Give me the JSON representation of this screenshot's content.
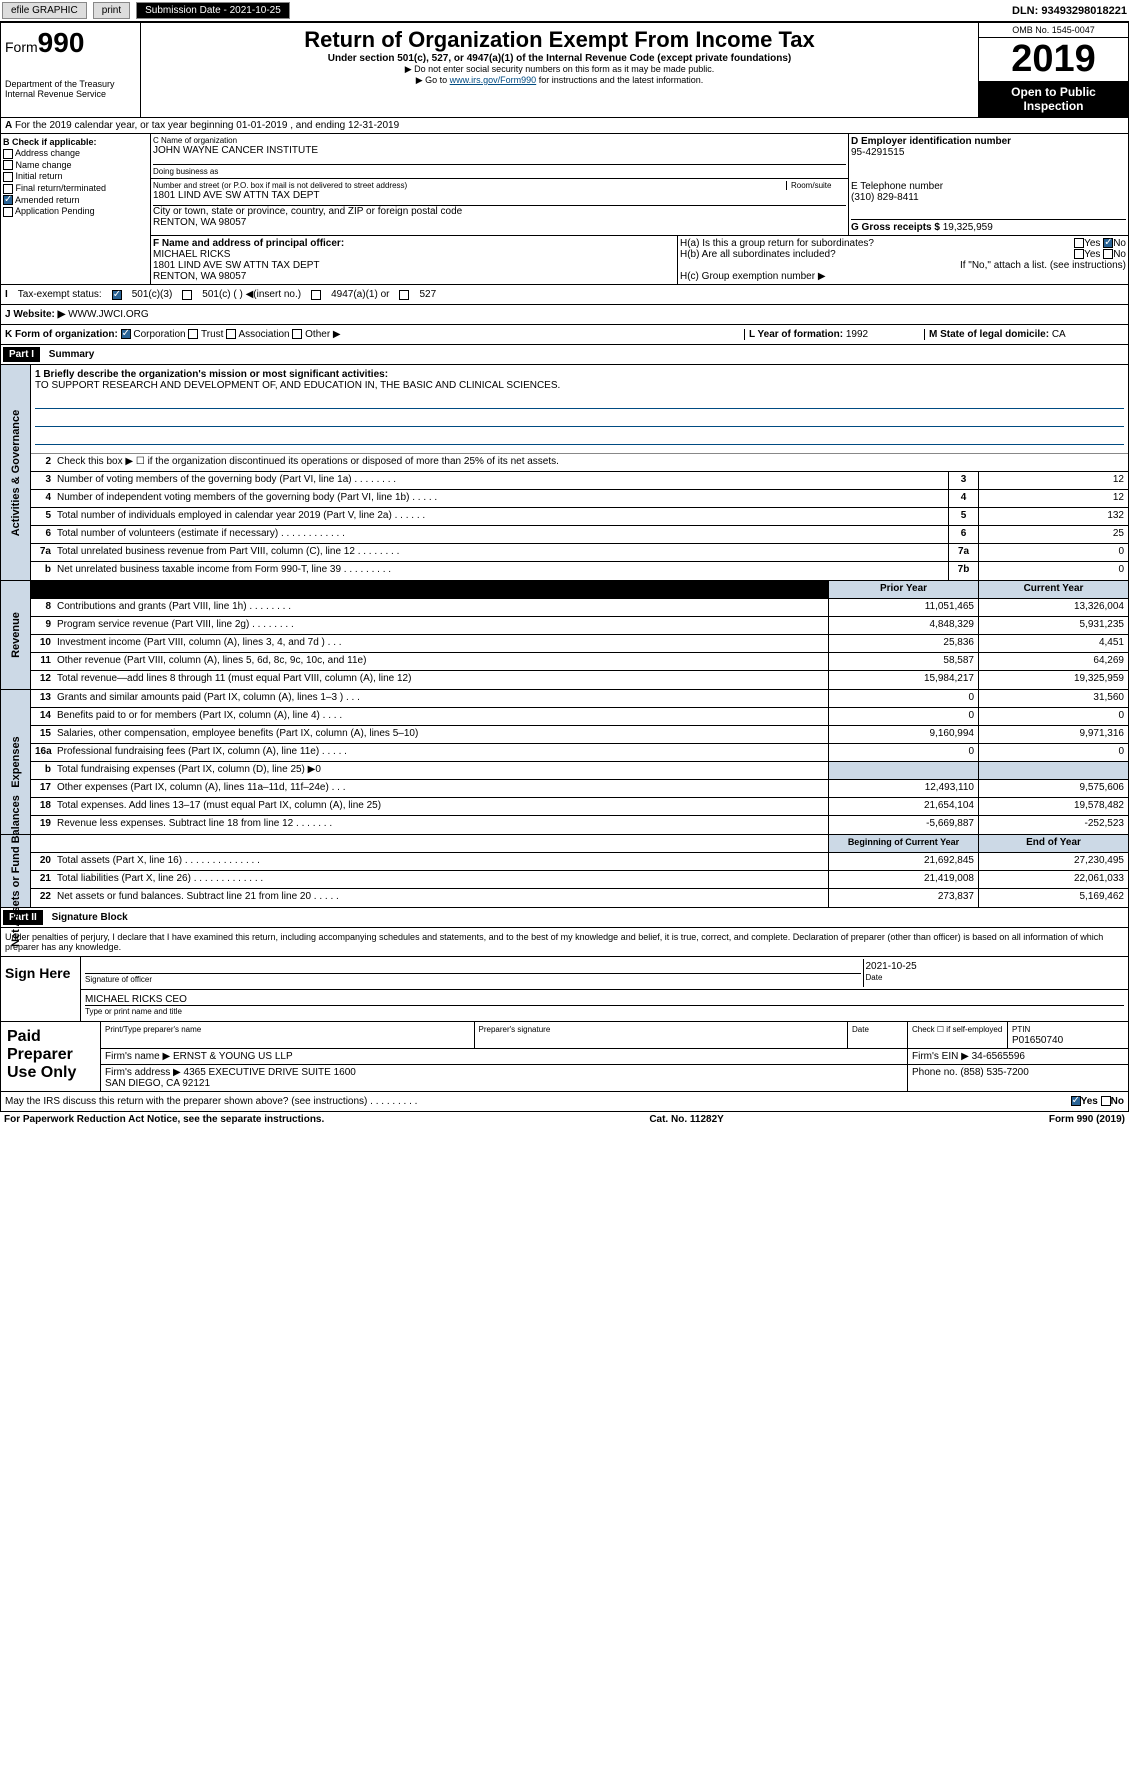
{
  "topbar": {
    "efile": "efile GRAPHIC",
    "print": "print",
    "subdate_label": "Submission Date - 2021-10-25",
    "dln": "DLN: 93493298018221"
  },
  "header": {
    "form_label": "Form",
    "form_num": "990",
    "title": "Return of Organization Exempt From Income Tax",
    "subtitle": "Under section 501(c), 527, or 4947(a)(1) of the Internal Revenue Code (except private foundations)",
    "note1": "▶ Do not enter social security numbers on this form as it may be made public.",
    "note2_pre": "▶ Go to ",
    "note2_link": "www.irs.gov/Form990",
    "note2_post": " for instructions and the latest information.",
    "dept": "Department of the Treasury\nInternal Revenue Service",
    "omb": "OMB No. 1545-0047",
    "year": "2019",
    "inspect": "Open to Public Inspection"
  },
  "row_a": "For the 2019 calendar year, or tax year beginning 01-01-2019   , and ending 12-31-2019",
  "box_b": {
    "label": "B Check if applicable:",
    "items": [
      "Address change",
      "Name change",
      "Initial return",
      "Final return/terminated",
      "Amended return",
      "Application Pending"
    ],
    "checked_idx": 4
  },
  "box_c": {
    "name_lbl": "C Name of organization",
    "name": "JOHN WAYNE CANCER INSTITUTE",
    "dba_lbl": "Doing business as",
    "addr_lbl": "Number and street (or P.O. box if mail is not delivered to street address)",
    "room_lbl": "Room/suite",
    "addr": "1801 LIND AVE SW ATTN TAX DEPT",
    "city_lbl": "City or town, state or province, country, and ZIP or foreign postal code",
    "city": "RENTON, WA  98057"
  },
  "box_d": {
    "lbl": "D Employer identification number",
    "val": "95-4291515"
  },
  "box_e": {
    "lbl": "E Telephone number",
    "val": "(310) 829-8411"
  },
  "box_g": {
    "lbl": "G Gross receipts $",
    "val": "19,325,959"
  },
  "box_f": {
    "lbl": "F  Name and address of principal officer:",
    "name": "MICHAEL RICKS",
    "addr": "1801 LIND AVE SW ATTN TAX DEPT\nRENTON, WA  98057"
  },
  "box_h": {
    "a": "H(a)  Is this a group return for subordinates?",
    "b": "H(b)  Are all subordinates included?",
    "b_note": "If \"No,\" attach a list. (see instructions)",
    "c": "H(c)  Group exemption number ▶",
    "yes": "Yes",
    "no": "No"
  },
  "tax_status": {
    "lbl": "Tax-exempt status:",
    "opts": [
      "501(c)(3)",
      "501(c) (  ) ◀(insert no.)",
      "4947(a)(1) or",
      "527"
    ]
  },
  "website": {
    "lbl": "J  Website: ▶",
    "val": "WWW.JWCI.ORG"
  },
  "box_k": {
    "lbl": "K Form of organization:",
    "opts": [
      "Corporation",
      "Trust",
      "Association",
      "Other ▶"
    ]
  },
  "box_l": {
    "lbl": "L Year of formation:",
    "val": "1992"
  },
  "box_m": {
    "lbl": "M State of legal domicile:",
    "val": "CA"
  },
  "part1": {
    "hdr": "Part I",
    "title": "Summary"
  },
  "mission": {
    "lbl": "1  Briefly describe the organization's mission or most significant activities:",
    "text": "TO SUPPORT RESEARCH AND DEVELOPMENT OF, AND EDUCATION IN, THE BASIC AND CLINICAL SCIENCES."
  },
  "gov_lines": [
    {
      "n": "2",
      "d": "Check this box ▶ ☐  if the organization discontinued its operations or disposed of more than 25% of its net assets."
    },
    {
      "n": "3",
      "d": "Number of voting members of the governing body (Part VI, line 1a)  .   .   .   .   .   .   .   .",
      "b": "3",
      "v": "12"
    },
    {
      "n": "4",
      "d": "Number of independent voting members of the governing body (Part VI, line 1b)  .   .   .   .   .",
      "b": "4",
      "v": "12"
    },
    {
      "n": "5",
      "d": "Total number of individuals employed in calendar year 2019 (Part V, line 2a)  .   .   .   .   .   .",
      "b": "5",
      "v": "132"
    },
    {
      "n": "6",
      "d": "Total number of volunteers (estimate if necessary)  .   .   .   .   .   .   .   .   .   .   .   .",
      "b": "6",
      "v": "25"
    },
    {
      "n": "7a",
      "d": "Total unrelated business revenue from Part VIII, column (C), line 12  .   .   .   .   .   .   .   .",
      "b": "7a",
      "v": "0"
    },
    {
      "n": "b",
      "d": "Net unrelated business taxable income from Form 990-T, line 39  .   .   .   .   .   .   .   .   .",
      "b": "7b",
      "v": "0"
    }
  ],
  "col_hdrs": {
    "prior": "Prior Year",
    "current": "Current Year"
  },
  "revenue": [
    {
      "n": "8",
      "d": "Contributions and grants (Part VIII, line 1h)  .   .   .   .   .   .   .   .",
      "p": "11,051,465",
      "c": "13,326,004"
    },
    {
      "n": "9",
      "d": "Program service revenue (Part VIII, line 2g)  .   .   .   .   .   .   .   .",
      "p": "4,848,329",
      "c": "5,931,235"
    },
    {
      "n": "10",
      "d": "Investment income (Part VIII, column (A), lines 3, 4, and 7d )   .   .   .",
      "p": "25,836",
      "c": "4,451"
    },
    {
      "n": "11",
      "d": "Other revenue (Part VIII, column (A), lines 5, 6d, 8c, 9c, 10c, and 11e)",
      "p": "58,587",
      "c": "64,269"
    },
    {
      "n": "12",
      "d": "Total revenue—add lines 8 through 11 (must equal Part VIII, column (A), line 12)",
      "p": "15,984,217",
      "c": "19,325,959"
    }
  ],
  "expenses": [
    {
      "n": "13",
      "d": "Grants and similar amounts paid (Part IX, column (A), lines 1–3 )   .   .   .",
      "p": "0",
      "c": "31,560"
    },
    {
      "n": "14",
      "d": "Benefits paid to or for members (Part IX, column (A), line 4)  .   .   .   .",
      "p": "0",
      "c": "0"
    },
    {
      "n": "15",
      "d": "Salaries, other compensation, employee benefits (Part IX, column (A), lines 5–10)",
      "p": "9,160,994",
      "c": "9,971,316"
    },
    {
      "n": "16a",
      "d": "Professional fundraising fees (Part IX, column (A), line 11e)  .   .   .   .   .",
      "p": "0",
      "c": "0"
    },
    {
      "n": "b",
      "d": "Total fundraising expenses (Part IX, column (D), line 25) ▶0",
      "p": "",
      "c": ""
    },
    {
      "n": "17",
      "d": "Other expenses (Part IX, column (A), lines 11a–11d, 11f–24e)  .   .   .",
      "p": "12,493,110",
      "c": "9,575,606"
    },
    {
      "n": "18",
      "d": "Total expenses. Add lines 13–17 (must equal Part IX, column (A), line 25)",
      "p": "21,654,104",
      "c": "19,578,482"
    },
    {
      "n": "19",
      "d": "Revenue less expenses. Subtract line 18 from line 12  .   .   .   .   .   .   .",
      "p": "-5,669,887",
      "c": "-252,523"
    }
  ],
  "net_hdrs": {
    "begin": "Beginning of Current Year",
    "end": "End of Year"
  },
  "net_assets": [
    {
      "n": "20",
      "d": "Total assets (Part X, line 16)  .   .   .   .   .   .   .   .   .   .   .   .   .   .",
      "p": "21,692,845",
      "c": "27,230,495"
    },
    {
      "n": "21",
      "d": "Total liabilities (Part X, line 26)  .   .   .   .   .   .   .   .   .   .   .   .   .",
      "p": "21,419,008",
      "c": "22,061,033"
    },
    {
      "n": "22",
      "d": "Net assets or fund balances. Subtract line 21 from line 20  .   .   .   .   .",
      "p": "273,837",
      "c": "5,169,462"
    }
  ],
  "side_labels": {
    "gov": "Activities & Governance",
    "rev": "Revenue",
    "exp": "Expenses",
    "net": "Net Assets or Fund Balances"
  },
  "part2": {
    "hdr": "Part II",
    "title": "Signature Block"
  },
  "sig_para": "Under penalties of perjury, I declare that I have examined this return, including accompanying schedules and statements, and to the best of my knowledge and belief, it is true, correct, and complete. Declaration of preparer (other than officer) is based on all information of which preparer has any knowledge.",
  "sign_here": {
    "lbl": "Sign Here",
    "sig_lbl": "Signature of officer",
    "date": "2021-10-25",
    "date_lbl": "Date",
    "name": "MICHAEL RICKS CEO",
    "name_lbl": "Type or print name and title"
  },
  "paid": {
    "lbl": "Paid Preparer Use Only",
    "col1": "Print/Type preparer's name",
    "col2": "Preparer's signature",
    "col3": "Date",
    "col4_chk": "Check ☐ if self-employed",
    "ptin_lbl": "PTIN",
    "ptin": "P01650740",
    "firm_lbl": "Firm's name    ▶",
    "firm": "ERNST & YOUNG US LLP",
    "ein_lbl": "Firm's EIN ▶",
    "ein": "34-6565596",
    "addr_lbl": "Firm's address ▶",
    "addr": "4365 EXECUTIVE DRIVE SUITE 1600\nSAN DIEGO, CA  92121",
    "phone_lbl": "Phone no.",
    "phone": "(858) 535-7200"
  },
  "discuss": {
    "q": "May the IRS discuss this return with the preparer shown above? (see instructions)   .   .   .   .   .   .   .   .   .",
    "yes": "Yes",
    "no": "No"
  },
  "footer": {
    "pra": "For Paperwork Reduction Act Notice, see the separate instructions.",
    "cat": "Cat. No. 11282Y",
    "form": "Form 990 (2019)"
  }
}
